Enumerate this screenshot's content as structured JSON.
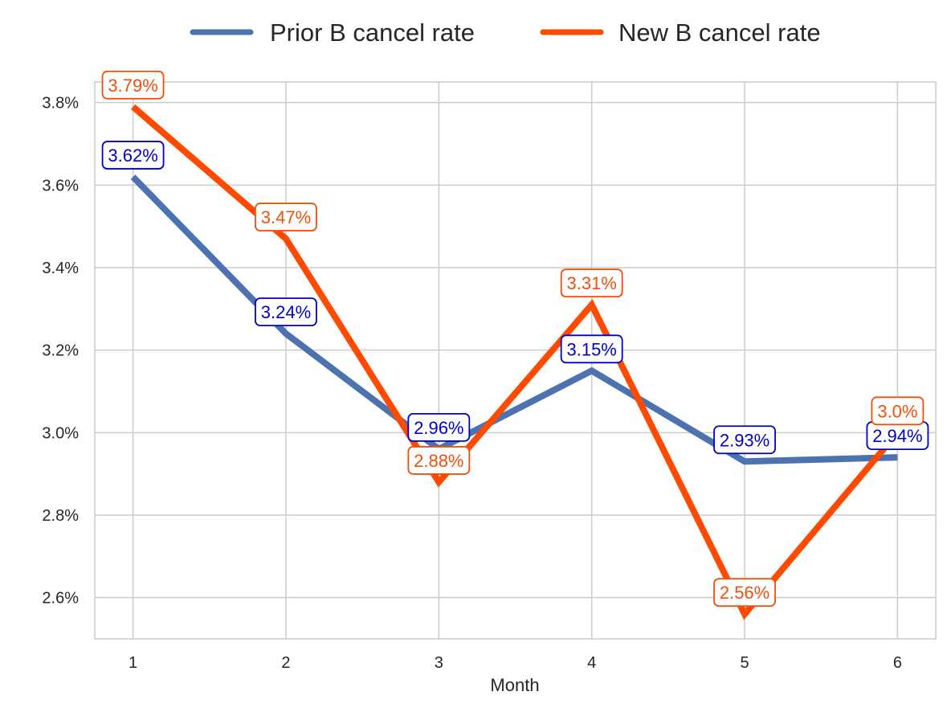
{
  "chart_data": {
    "type": "line",
    "title": "",
    "xlabel": "Month",
    "ylabel": "",
    "x": [
      1,
      2,
      3,
      4,
      5,
      6
    ],
    "x_tick_labels": [
      "1",
      "2",
      "3",
      "4",
      "5",
      "6"
    ],
    "y_ticks": [
      2.6,
      2.8,
      3.0,
      3.2,
      3.4,
      3.6,
      3.8
    ],
    "y_tick_labels": [
      "2.6%",
      "2.8%",
      "3.0%",
      "3.2%",
      "3.4%",
      "3.6%",
      "3.8%"
    ],
    "xlim": [
      0.75,
      6.25
    ],
    "ylim": [
      2.5,
      3.85
    ],
    "grid": true,
    "legend_position": "top-center",
    "series": [
      {
        "name": "Prior B cancel rate",
        "color": "#4C72B0",
        "label_color": "#0000CC",
        "values": [
          3.62,
          3.24,
          2.96,
          3.15,
          2.93,
          2.94
        ],
        "labels": [
          "3.62%",
          "3.24%",
          "2.96%",
          "3.15%",
          "2.93%",
          "2.94%"
        ]
      },
      {
        "name": "New B cancel rate",
        "color": "#FF4A00",
        "label_color": "#F0500A",
        "values": [
          3.79,
          3.47,
          2.88,
          3.31,
          2.56,
          3.0
        ],
        "labels": [
          "3.79%",
          "3.47%",
          "2.88%",
          "3.31%",
          "2.56%",
          "3.0%"
        ]
      }
    ]
  }
}
